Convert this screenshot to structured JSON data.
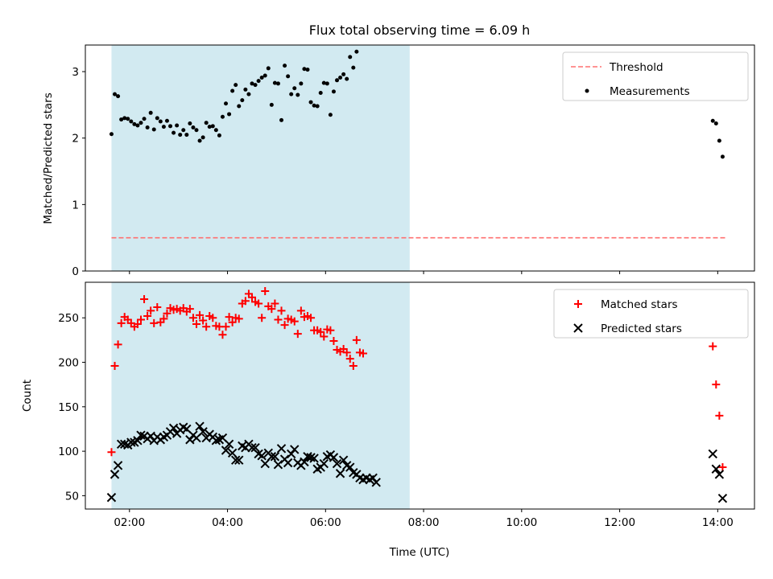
{
  "figure": {
    "title": "Flux total observing time = 6.09 h",
    "xlabel": "Time (UTC)"
  },
  "chart_data": [
    {
      "type": "scatter",
      "ylabel": "Matched/Predicted stars",
      "xlim": [
        "01:06",
        "14:45"
      ],
      "ylim": [
        0,
        3.4
      ],
      "yticks": [
        0,
        1,
        2,
        3
      ],
      "grid": false,
      "legend_position": "top-right",
      "shaded_interval": [
        "01:38",
        "07:43"
      ],
      "shade_color": "#add8e6",
      "series": [
        {
          "name": "Threshold",
          "style": "dashed-line",
          "color": "#ff7070",
          "points": [
            [
              "01:38",
              0.5
            ],
            [
              "14:10",
              0.5
            ]
          ]
        },
        {
          "name": "Measurements",
          "style": "dot",
          "color": "#000000",
          "points": [
            [
              "01:38",
              2.06
            ],
            [
              "01:42",
              2.66
            ],
            [
              "01:46",
              2.63
            ],
            [
              "01:50",
              2.28
            ],
            [
              "01:54",
              2.3
            ],
            [
              "01:58",
              2.29
            ],
            [
              "02:02",
              2.25
            ],
            [
              "02:06",
              2.21
            ],
            [
              "02:10",
              2.19
            ],
            [
              "02:14",
              2.23
            ],
            [
              "02:18",
              2.29
            ],
            [
              "02:22",
              2.16
            ],
            [
              "02:26",
              2.38
            ],
            [
              "02:30",
              2.13
            ],
            [
              "02:34",
              2.3
            ],
            [
              "02:38",
              2.25
            ],
            [
              "02:42",
              2.17
            ],
            [
              "02:46",
              2.26
            ],
            [
              "02:50",
              2.18
            ],
            [
              "02:54",
              2.08
            ],
            [
              "02:58",
              2.19
            ],
            [
              "03:02",
              2.05
            ],
            [
              "03:06",
              2.12
            ],
            [
              "03:10",
              2.05
            ],
            [
              "03:14",
              2.22
            ],
            [
              "03:18",
              2.16
            ],
            [
              "03:22",
              2.12
            ],
            [
              "03:26",
              1.96
            ],
            [
              "03:30",
              2.01
            ],
            [
              "03:34",
              2.23
            ],
            [
              "03:38",
              2.17
            ],
            [
              "03:42",
              2.18
            ],
            [
              "03:46",
              2.12
            ],
            [
              "03:50",
              2.04
            ],
            [
              "03:54",
              2.32
            ],
            [
              "03:58",
              2.52
            ],
            [
              "04:02",
              2.36
            ],
            [
              "04:06",
              2.71
            ],
            [
              "04:10",
              2.8
            ],
            [
              "04:14",
              2.48
            ],
            [
              "04:18",
              2.57
            ],
            [
              "04:22",
              2.73
            ],
            [
              "04:26",
              2.66
            ],
            [
              "04:30",
              2.82
            ],
            [
              "04:34",
              2.8
            ],
            [
              "04:38",
              2.86
            ],
            [
              "04:42",
              2.91
            ],
            [
              "04:46",
              2.94
            ],
            [
              "04:50",
              3.05
            ],
            [
              "04:54",
              2.5
            ],
            [
              "04:58",
              2.83
            ],
            [
              "05:02",
              2.82
            ],
            [
              "05:06",
              2.27
            ],
            [
              "05:10",
              3.09
            ],
            [
              "05:14",
              2.93
            ],
            [
              "05:18",
              2.66
            ],
            [
              "05:22",
              2.75
            ],
            [
              "05:26",
              2.65
            ],
            [
              "05:30",
              2.82
            ],
            [
              "05:34",
              3.04
            ],
            [
              "05:38",
              3.03
            ],
            [
              "05:42",
              2.54
            ],
            [
              "05:46",
              2.49
            ],
            [
              "05:50",
              2.48
            ],
            [
              "05:54",
              2.68
            ],
            [
              "05:58",
              2.83
            ],
            [
              "06:02",
              2.82
            ],
            [
              "06:06",
              2.35
            ],
            [
              "06:10",
              2.7
            ],
            [
              "06:14",
              2.87
            ],
            [
              "06:18",
              2.91
            ],
            [
              "06:22",
              2.96
            ],
            [
              "06:26",
              2.89
            ],
            [
              "06:30",
              3.22
            ],
            [
              "06:34",
              3.06
            ],
            [
              "06:38",
              3.3
            ],
            [
              "13:54",
              2.26
            ],
            [
              "13:58",
              2.22
            ],
            [
              "14:02",
              1.96
            ],
            [
              "14:06",
              1.72
            ]
          ]
        }
      ]
    },
    {
      "type": "scatter",
      "ylabel": "Count",
      "xlim": [
        "01:06",
        "14:45"
      ],
      "ylim": [
        35,
        290
      ],
      "yticks": [
        50,
        100,
        150,
        200,
        250
      ],
      "xticks": [
        "02:00",
        "04:00",
        "06:00",
        "08:00",
        "10:00",
        "12:00",
        "14:00"
      ],
      "grid": false,
      "legend_position": "top-right",
      "shaded_interval": [
        "01:38",
        "07:43"
      ],
      "shade_color": "#add8e6",
      "series": [
        {
          "name": "Matched stars",
          "marker": "+",
          "color": "#ff0000",
          "points": [
            [
              "01:38",
              99
            ],
            [
              "01:42",
              196
            ],
            [
              "01:46",
              220
            ],
            [
              "01:50",
              244
            ],
            [
              "01:54",
              251
            ],
            [
              "01:58",
              248
            ],
            [
              "02:02",
              244
            ],
            [
              "02:06",
              240
            ],
            [
              "02:10",
              243
            ],
            [
              "02:14",
              248
            ],
            [
              "02:18",
              271
            ],
            [
              "02:22",
              252
            ],
            [
              "02:26",
              258
            ],
            [
              "02:30",
              244
            ],
            [
              "02:34",
              262
            ],
            [
              "02:38",
              245
            ],
            [
              "02:42",
              249
            ],
            [
              "02:46",
              255
            ],
            [
              "02:50",
              261
            ],
            [
              "02:54",
              259
            ],
            [
              "02:58",
              260
            ],
            [
              "03:02",
              258
            ],
            [
              "03:06",
              261
            ],
            [
              "03:10",
              257
            ],
            [
              "03:14",
              260
            ],
            [
              "03:18",
              250
            ],
            [
              "03:22",
              243
            ],
            [
              "03:26",
              253
            ],
            [
              "03:30",
              247
            ],
            [
              "03:34",
              240
            ],
            [
              "03:38",
              252
            ],
            [
              "03:42",
              250
            ],
            [
              "03:46",
              241
            ],
            [
              "03:50",
              240
            ],
            [
              "03:54",
              231
            ],
            [
              "03:58",
              240
            ],
            [
              "04:02",
              251
            ],
            [
              "04:06",
              245
            ],
            [
              "04:10",
              250
            ],
            [
              "04:14",
              249
            ],
            [
              "04:18",
              266
            ],
            [
              "04:22",
              269
            ],
            [
              "04:26",
              277
            ],
            [
              "04:30",
              273
            ],
            [
              "04:34",
              268
            ],
            [
              "04:38",
              266
            ],
            [
              "04:42",
              250
            ],
            [
              "04:46",
              280
            ],
            [
              "04:50",
              263
            ],
            [
              "04:54",
              260
            ],
            [
              "04:58",
              266
            ],
            [
              "05:02",
              248
            ],
            [
              "05:06",
              258
            ],
            [
              "05:10",
              242
            ],
            [
              "05:14",
              249
            ],
            [
              "05:18",
              248
            ],
            [
              "05:22",
              246
            ],
            [
              "05:26",
              232
            ],
            [
              "05:30",
              258
            ],
            [
              "05:34",
              251
            ],
            [
              "05:38",
              252
            ],
            [
              "05:42",
              250
            ],
            [
              "05:46",
              236
            ],
            [
              "05:50",
              236
            ],
            [
              "05:54",
              234
            ],
            [
              "05:58",
              229
            ],
            [
              "06:02",
              237
            ],
            [
              "06:06",
              236
            ],
            [
              "06:10",
              224
            ],
            [
              "06:14",
              214
            ],
            [
              "06:18",
              212
            ],
            [
              "06:22",
              215
            ],
            [
              "06:26",
              211
            ],
            [
              "06:30",
              204
            ],
            [
              "06:34",
              196
            ],
            [
              "06:38",
              225
            ],
            [
              "06:42",
              211
            ],
            [
              "06:46",
              210
            ],
            [
              "13:54",
              218
            ],
            [
              "13:58",
              175
            ],
            [
              "14:02",
              140
            ],
            [
              "14:06",
              82
            ]
          ]
        },
        {
          "name": "Predicted stars",
          "marker": "x",
          "color": "#000000",
          "points": [
            [
              "01:38",
              48
            ],
            [
              "01:42",
              74
            ],
            [
              "01:46",
              84
            ],
            [
              "01:50",
              108
            ],
            [
              "01:54",
              108
            ],
            [
              "01:58",
              107
            ],
            [
              "02:02",
              110
            ],
            [
              "02:06",
              110
            ],
            [
              "02:10",
              112
            ],
            [
              "02:14",
              118
            ],
            [
              "02:18",
              117
            ],
            [
              "02:22",
              114
            ],
            [
              "02:26",
              117
            ],
            [
              "02:30",
              112
            ],
            [
              "02:34",
              116
            ],
            [
              "02:38",
              113
            ],
            [
              "02:42",
              116
            ],
            [
              "02:46",
              118
            ],
            [
              "02:50",
              122
            ],
            [
              "02:54",
              126
            ],
            [
              "02:58",
              120
            ],
            [
              "03:02",
              124
            ],
            [
              "03:06",
              127
            ],
            [
              "03:10",
              125
            ],
            [
              "03:14",
              113
            ],
            [
              "03:18",
              118
            ],
            [
              "03:22",
              115
            ],
            [
              "03:26",
              128
            ],
            [
              "03:30",
              122
            ],
            [
              "03:34",
              115
            ],
            [
              "03:38",
              119
            ],
            [
              "03:42",
              116
            ],
            [
              "03:46",
              112
            ],
            [
              "03:50",
              113
            ],
            [
              "03:54",
              115
            ],
            [
              "03:58",
              101
            ],
            [
              "04:02",
              108
            ],
            [
              "04:06",
              98
            ],
            [
              "04:10",
              90
            ],
            [
              "04:14",
              90
            ],
            [
              "04:18",
              106
            ],
            [
              "04:22",
              104
            ],
            [
              "04:26",
              108
            ],
            [
              "04:30",
              104
            ],
            [
              "04:34",
              104
            ],
            [
              "04:38",
              97
            ],
            [
              "04:42",
              95
            ],
            [
              "04:46",
              86
            ],
            [
              "04:50",
              98
            ],
            [
              "04:54",
              94
            ],
            [
              "04:58",
              94
            ],
            [
              "05:02",
              85
            ],
            [
              "05:06",
              103
            ],
            [
              "05:10",
              91
            ],
            [
              "05:14",
              87
            ],
            [
              "05:18",
              97
            ],
            [
              "05:22",
              102
            ],
            [
              "05:26",
              87
            ],
            [
              "05:30",
              84
            ],
            [
              "05:34",
              88
            ],
            [
              "05:38",
              94
            ],
            [
              "05:42",
              93
            ],
            [
              "05:46",
              92
            ],
            [
              "05:50",
              80
            ],
            [
              "05:54",
              82
            ],
            [
              "05:58",
              86
            ],
            [
              "06:02",
              94
            ],
            [
              "06:06",
              96
            ],
            [
              "06:10",
              93
            ],
            [
              "06:14",
              86
            ],
            [
              "06:18",
              75
            ],
            [
              "06:22",
              90
            ],
            [
              "06:26",
              84
            ],
            [
              "06:30",
              82
            ],
            [
              "06:34",
              76
            ],
            [
              "06:38",
              74
            ],
            [
              "06:42",
              70
            ],
            [
              "06:46",
              68
            ],
            [
              "06:50",
              70
            ],
            [
              "06:54",
              68
            ],
            [
              "06:58",
              70
            ],
            [
              "07:02",
              65
            ],
            [
              "13:54",
              97
            ],
            [
              "13:58",
              80
            ],
            [
              "14:02",
              74
            ],
            [
              "14:06",
              47
            ]
          ]
        }
      ]
    }
  ]
}
